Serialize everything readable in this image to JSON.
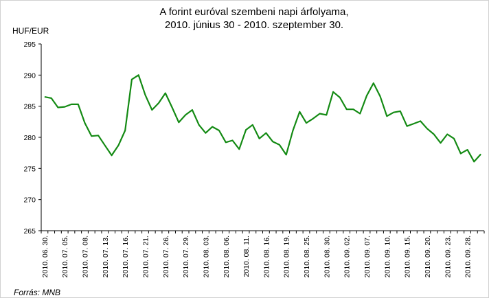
{
  "chart_data": {
    "type": "line",
    "title": "A forint euróval szembeni napi árfolyama,",
    "subtitle": "2010. június 30 - 2010. szeptember 30.",
    "y_label": "HUF/EUR",
    "source": "Forrás: MNB",
    "categories": [
      "2010. 06. 30.",
      null,
      null,
      "2010. 07. 05.",
      null,
      null,
      "2010. 07. 08.",
      null,
      null,
      "2010. 07. 13.",
      null,
      null,
      "2010. 07. 16.",
      null,
      null,
      "2010. 07. 21.",
      null,
      null,
      "2010. 07. 26.",
      null,
      null,
      "2010. 07. 29.",
      null,
      null,
      "2010. 08. 03.",
      null,
      null,
      "2010. 08. 06.",
      null,
      null,
      "2010. 08. 11.",
      null,
      null,
      "2010. 08. 16.",
      null,
      null,
      "2010. 08. 19.",
      null,
      null,
      "2010. 08. 25.",
      null,
      null,
      "2010. 08. 30.",
      null,
      null,
      "2010. 09. 02.",
      null,
      null,
      "2010. 09. 07.",
      null,
      null,
      "2010. 09. 10.",
      null,
      null,
      "2010. 09. 15.",
      null,
      null,
      "2010. 09. 20.",
      null,
      null,
      "2010. 09. 23.",
      null,
      null,
      "2010. 09. 28.",
      null,
      null
    ],
    "values": [
      286.5,
      286.3,
      284.8,
      284.9,
      285.3,
      285.3,
      282.3,
      280.2,
      280.3,
      278.7,
      277.1,
      278.7,
      281.1,
      289.3,
      290.0,
      286.8,
      284.4,
      285.5,
      287.1,
      284.8,
      282.4,
      283.6,
      284.4,
      282.0,
      280.7,
      281.7,
      281.1,
      279.2,
      279.5,
      278.1,
      281.2,
      282.0,
      279.8,
      280.7,
      279.3,
      278.8,
      277.2,
      281.1,
      284.1,
      282.3,
      283.0,
      283.8,
      283.6,
      287.3,
      286.4,
      284.5,
      284.5,
      283.8,
      286.7,
      288.7,
      286.6,
      283.4,
      284.0,
      284.2,
      281.8,
      282.2,
      282.6,
      281.4,
      280.5,
      279.1,
      280.5,
      279.8,
      277.4,
      278.0,
      276.1,
      277.3
    ],
    "color": "#138a13",
    "ylim": [
      265,
      295
    ],
    "yticks": [
      265,
      270,
      275,
      280,
      285,
      290,
      295
    ],
    "grid": false
  }
}
